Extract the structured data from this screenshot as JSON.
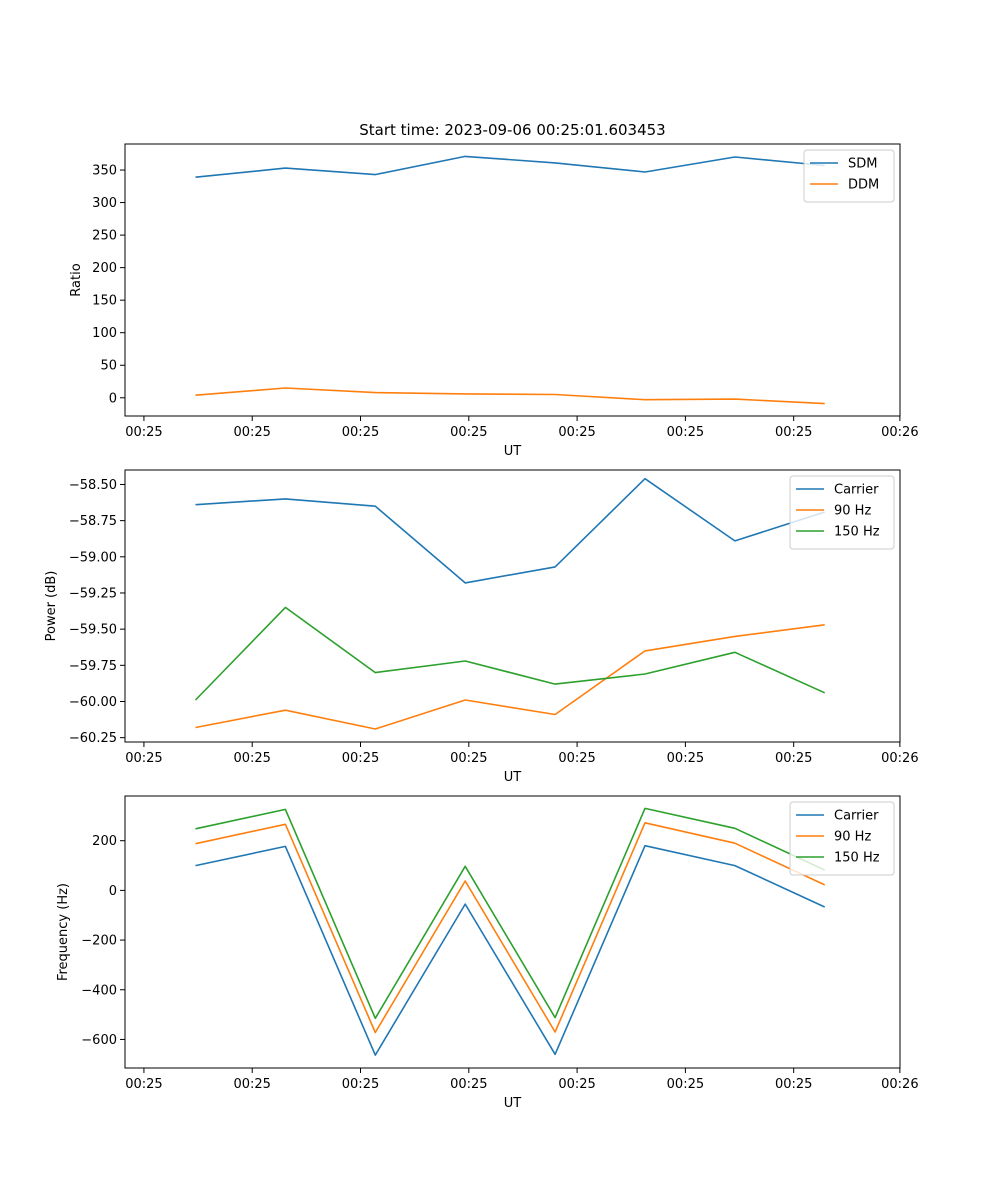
{
  "chart_data": [
    {
      "type": "line",
      "title": "Start time: 2023-09-06 00:25:01.603453",
      "xlabel": "UT",
      "ylabel": "Ratio",
      "x_tick_labels": [
        "00:25",
        "00:25",
        "00:25",
        "00:25",
        "00:25",
        "00:25",
        "00:25"
      ],
      "x_last_tick_label": "00:26",
      "x": [
        1,
        2,
        3,
        4,
        5,
        6,
        7,
        8
      ],
      "xlim": [
        0.21,
        9.22
      ],
      "ylim": [
        -28,
        390
      ],
      "yticks": [
        0,
        50,
        100,
        150,
        200,
        250,
        300,
        350
      ],
      "ytick_labels": [
        "0",
        "50",
        "100",
        "150",
        "200",
        "250",
        "300",
        "350"
      ],
      "legend_position": "top-right",
      "series": [
        {
          "name": "SDM",
          "color": "#1f77b4",
          "values": [
            339,
            353,
            343,
            371,
            361,
            347,
            370,
            357
          ]
        },
        {
          "name": "DDM",
          "color": "#ff7f0e",
          "values": [
            4,
            15,
            8,
            6,
            5,
            -3,
            -2,
            -9
          ]
        }
      ]
    },
    {
      "type": "line",
      "title": "",
      "xlabel": "UT",
      "ylabel": "Power (dB)",
      "x_tick_labels": [
        "00:25",
        "00:25",
        "00:25",
        "00:25",
        "00:25",
        "00:25",
        "00:25"
      ],
      "x_last_tick_label": "00:26",
      "x": [
        1,
        2,
        3,
        4,
        5,
        6,
        7,
        8
      ],
      "xlim": [
        0.21,
        9.22
      ],
      "ylim": [
        -60.28,
        -58.4
      ],
      "yticks": [
        -60.25,
        -60.0,
        -59.75,
        -59.5,
        -59.25,
        -59.0,
        -58.75,
        -58.5
      ],
      "ytick_labels": [
        "−60.25",
        "−60.00",
        "−59.75",
        "−59.50",
        "−59.25",
        "−59.00",
        "−58.75",
        "−58.50"
      ],
      "legend_position": "top-right",
      "series": [
        {
          "name": "Carrier",
          "color": "#1f77b4",
          "values": [
            -58.64,
            -58.6,
            -58.65,
            -59.18,
            -59.07,
            -58.46,
            -58.89,
            -58.69
          ]
        },
        {
          "name": "90 Hz",
          "color": "#ff7f0e",
          "values": [
            -60.18,
            -60.06,
            -60.19,
            -59.99,
            -60.09,
            -59.65,
            -59.55,
            -59.47
          ]
        },
        {
          "name": "150 Hz",
          "color": "#2ca02c",
          "values": [
            -59.99,
            -59.35,
            -59.8,
            -59.72,
            -59.88,
            -59.81,
            -59.66,
            -59.94
          ]
        }
      ]
    },
    {
      "type": "line",
      "title": "",
      "xlabel": "UT",
      "ylabel": "Frequency (Hz)",
      "x_tick_labels": [
        "00:25",
        "00:25",
        "00:25",
        "00:25",
        "00:25",
        "00:25",
        "00:25"
      ],
      "x_last_tick_label": "00:26",
      "x": [
        1,
        2,
        3,
        4,
        5,
        6,
        7,
        8
      ],
      "xlim": [
        0.21,
        9.22
      ],
      "ylim": [
        -715,
        380
      ],
      "yticks": [
        -600,
        -400,
        -200,
        0,
        200
      ],
      "ytick_labels": [
        "−600",
        "−400",
        "−200",
        "0",
        "200"
      ],
      "legend_position": "top-right",
      "series": [
        {
          "name": "Carrier",
          "color": "#1f77b4",
          "values": [
            100,
            177,
            -663,
            -55,
            -660,
            180,
            100,
            -67
          ]
        },
        {
          "name": "90 Hz",
          "color": "#ff7f0e",
          "values": [
            188,
            266,
            -572,
            38,
            -570,
            272,
            190,
            22
          ]
        },
        {
          "name": "150 Hz",
          "color": "#2ca02c",
          "values": [
            248,
            326,
            -515,
            97,
            -512,
            330,
            250,
            82
          ]
        }
      ]
    }
  ]
}
